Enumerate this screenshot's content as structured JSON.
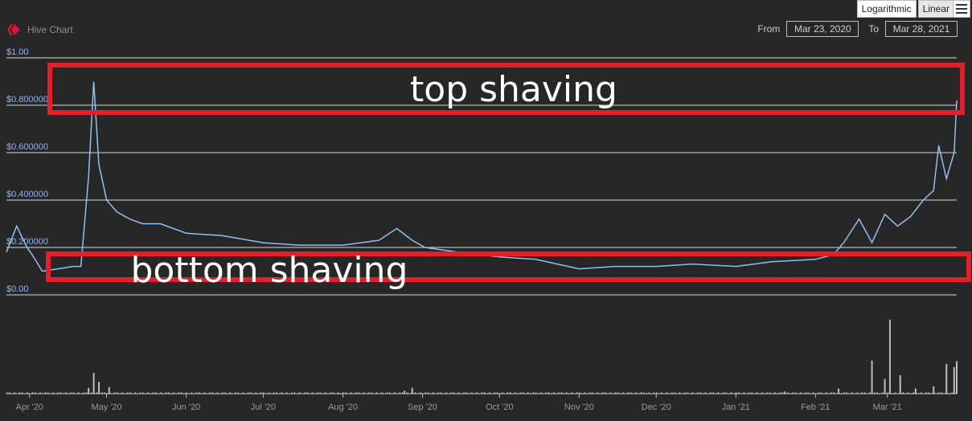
{
  "header": {
    "brand": "Hive Chart",
    "scale_buttons": [
      "Logarithmic",
      "Linear"
    ],
    "from_label": "From",
    "from_value": "Mar 23, 2020",
    "to_label": "To",
    "to_value": "Mar 28, 2021"
  },
  "annotations": {
    "top": "top shaving",
    "bottom": "bottom shaving",
    "box_color": "#e3202a"
  },
  "chart_data": {
    "type": "line",
    "title": "",
    "ylabel": "",
    "xlabel": "",
    "ylim": [
      0,
      1.0
    ],
    "y_ticks": [
      "$0.00",
      "$0.200000",
      "$0.400000",
      "$0.600000",
      "$0.800000",
      "$1.00"
    ],
    "x_ticks": [
      "Apr '20",
      "May '20",
      "Jun '20",
      "Jul '20",
      "Aug '20",
      "Sep '20",
      "Oct '20",
      "Nov '20",
      "Dec '20",
      "Jan '21",
      "Feb '21",
      "Mar '21"
    ],
    "series": [
      {
        "x": [
          "2020-03-23",
          "2020-03-27",
          "2020-03-31",
          "2020-04-02",
          "2020-04-06",
          "2020-04-12",
          "2020-04-18",
          "2020-04-21",
          "2020-04-24",
          "2020-04-26",
          "2020-04-28",
          "2020-05-01",
          "2020-05-05",
          "2020-05-10",
          "2020-05-15",
          "2020-05-22",
          "2020-06-01",
          "2020-06-15",
          "2020-07-01",
          "2020-07-15",
          "2020-08-01",
          "2020-08-15",
          "2020-08-22",
          "2020-08-28",
          "2020-09-02",
          "2020-09-15",
          "2020-10-01",
          "2020-10-15",
          "2020-11-01",
          "2020-11-15",
          "2020-12-01",
          "2020-12-15",
          "2021-01-01",
          "2021-01-15",
          "2021-02-01",
          "2021-02-08",
          "2021-02-12",
          "2021-02-18",
          "2021-02-23",
          "2021-02-28",
          "2021-03-05",
          "2021-03-10",
          "2021-03-15",
          "2021-03-19",
          "2021-03-21",
          "2021-03-24",
          "2021-03-27",
          "2021-03-28"
        ],
        "y": [
          0.18,
          0.29,
          0.2,
          0.17,
          0.1,
          0.11,
          0.12,
          0.12,
          0.5,
          0.9,
          0.55,
          0.4,
          0.35,
          0.32,
          0.3,
          0.3,
          0.26,
          0.25,
          0.22,
          0.21,
          0.21,
          0.23,
          0.28,
          0.23,
          0.2,
          0.18,
          0.16,
          0.15,
          0.11,
          0.12,
          0.12,
          0.13,
          0.12,
          0.14,
          0.15,
          0.17,
          0.22,
          0.32,
          0.22,
          0.34,
          0.29,
          0.33,
          0.4,
          0.44,
          0.63,
          0.49,
          0.6,
          0.82
        ]
      }
    ],
    "volume_series": {
      "x": [
        "2020-04-24",
        "2020-04-26",
        "2020-04-28",
        "2020-05-02",
        "2020-08-25",
        "2020-08-28",
        "2021-01-20",
        "2021-02-10",
        "2021-02-23",
        "2021-02-28",
        "2021-03-02",
        "2021-03-06",
        "2021-03-12",
        "2021-03-19",
        "2021-03-24",
        "2021-03-27",
        "2021-03-28"
      ],
      "y": [
        0.08,
        0.28,
        0.16,
        0.09,
        0.04,
        0.08,
        0.03,
        0.07,
        0.45,
        0.2,
        1.0,
        0.25,
        0.07,
        0.1,
        0.4,
        0.36,
        0.44
      ]
    },
    "grid": true,
    "line_color": "#8ec2f2",
    "volume_color": "#bdbdbd"
  }
}
